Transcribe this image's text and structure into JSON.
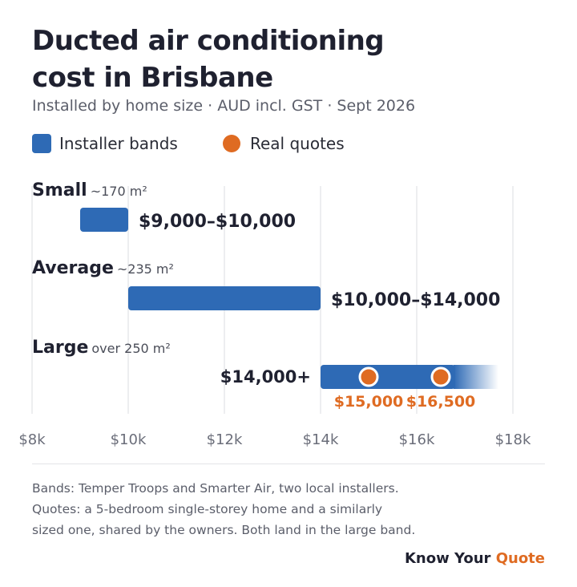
{
  "header": {
    "title_line1": "Ducted air conditioning",
    "title_line2": "cost in Brisbane",
    "subtitle": "Installed by home size · AUD incl. GST · Sept 2026"
  },
  "legend": {
    "bands_label": "Installer bands",
    "quotes_label": "Real quotes"
  },
  "colors": {
    "band": "#2e6ab5",
    "quote": "#df6b22",
    "grid": "#e7e8ec",
    "tick_text": "#6b6e7a"
  },
  "chart_data": {
    "type": "bar",
    "orientation": "horizontal",
    "xlim": [
      8000,
      18000
    ],
    "xticks": [
      8000,
      10000,
      12000,
      14000,
      16000,
      18000
    ],
    "xtick_labels": [
      "$8k",
      "$10k",
      "$12k",
      "$14k",
      "$16k",
      "$18k"
    ],
    "grid": true,
    "legend_position": "top-left",
    "categories": [
      {
        "name": "Small",
        "note": "~170 m²",
        "low": 9000,
        "high": 10000,
        "label": "$9,000–$10,000",
        "open_ended": false
      },
      {
        "name": "Average",
        "note": "~235 m²",
        "low": 10000,
        "high": 14000,
        "label": "$10,000–$14,000",
        "open_ended": false
      },
      {
        "name": "Large",
        "note": "over 250 m²",
        "low": 14000,
        "high": null,
        "label": "$14,000+",
        "open_ended": true
      }
    ],
    "quotes": [
      {
        "category": "Large",
        "value": 15000,
        "label": "$15,000"
      },
      {
        "category": "Large",
        "value": 16500,
        "label": "$16,500"
      }
    ]
  },
  "footnote": {
    "line1": "Bands: Temper Troops and Smarter Air, two local installers.",
    "line2": "Quotes: a 5-bedroom single-storey home and a similarly",
    "line3": "sized one, shared by the owners. Both land in the large band."
  },
  "brand": {
    "part1": "Know Your ",
    "part2": "Quote"
  }
}
